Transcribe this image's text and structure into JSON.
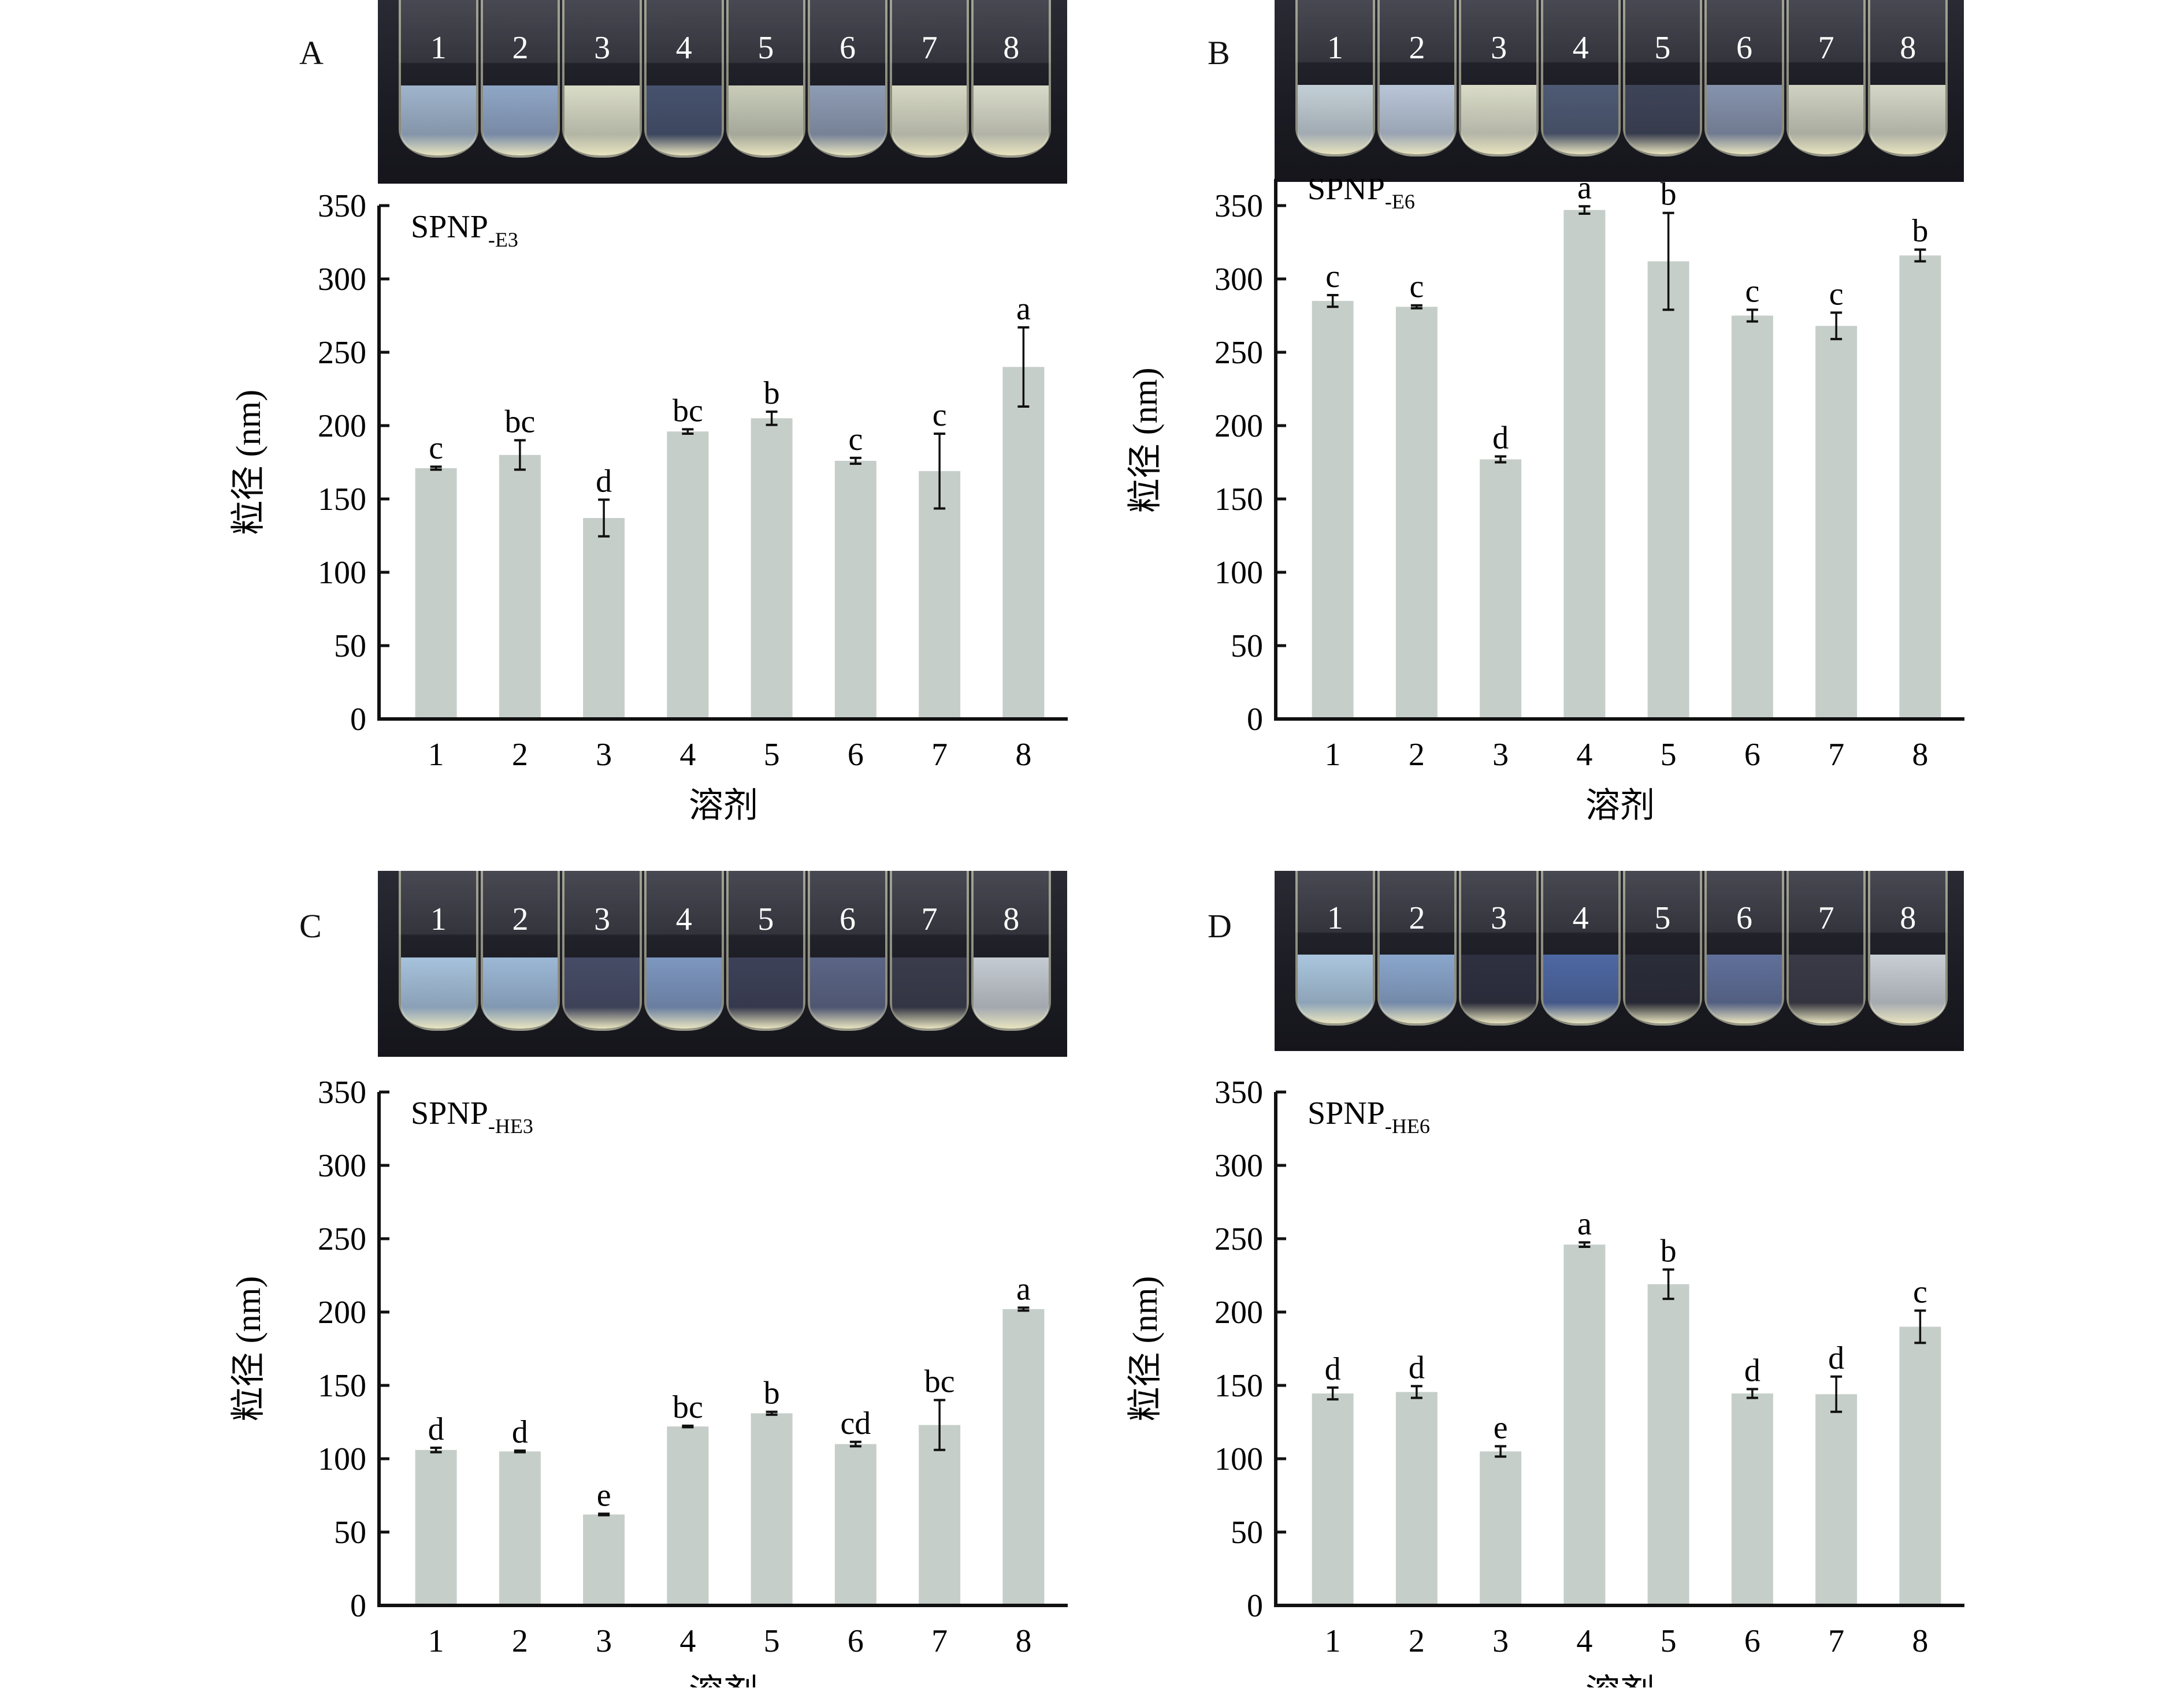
{
  "panels": [
    {
      "letter": "A",
      "vial_labels": [
        "1",
        "2",
        "3",
        "4",
        "5",
        "6",
        "7",
        "8"
      ],
      "liquid_colors": [
        "#9fb4cc",
        "#8fa6c6",
        "#d9dcc6",
        "#46526e",
        "#c8ccb8",
        "#8e9cb4",
        "#d6d8c4",
        "#d8dac8"
      ]
    },
    {
      "letter": "B",
      "vial_labels": [
        "1",
        "2",
        "3",
        "4",
        "5",
        "6",
        "7",
        "8"
      ],
      "liquid_colors": [
        "#c3cfd6",
        "#b9c6d8",
        "#dadcc8",
        "#4e5a74",
        "#3e4458",
        "#8693ad",
        "#cfd1c1",
        "#d4d6c6"
      ]
    },
    {
      "letter": "C",
      "vial_labels": [
        "1",
        "2",
        "3",
        "4",
        "5",
        "6",
        "7",
        "8"
      ],
      "liquid_colors": [
        "#a6c2dc",
        "#9cb8d6",
        "#464c66",
        "#7d97c0",
        "#3d4158",
        "#5b6585",
        "#3a3c4c",
        "#c5cbd2"
      ]
    },
    {
      "letter": "D",
      "vial_labels": [
        "1",
        "2",
        "3",
        "4",
        "5",
        "6",
        "7",
        "8"
      ],
      "liquid_colors": [
        "#aac6de",
        "#8aa6cc",
        "#2e3040",
        "#4e68a4",
        "#2a2c38",
        "#60709a",
        "#3a3a46",
        "#c8ced4"
      ]
    }
  ],
  "chart_data": [
    {
      "type": "bar",
      "panel": "A",
      "title": "SPNP",
      "title_sub": "-E3",
      "xlabel": "溶剂",
      "ylabel": "粒径 (nm)",
      "categories": [
        "1",
        "2",
        "3",
        "4",
        "5",
        "6",
        "7",
        "8"
      ],
      "values": [
        171,
        180,
        137,
        196,
        205,
        176,
        169,
        240
      ],
      "errors": [
        1,
        10,
        12.5,
        1.5,
        4.5,
        2,
        25.5,
        27
      ],
      "letters": [
        "c",
        "bc",
        "d",
        "bc",
        "b",
        "c",
        "c",
        "a"
      ],
      "ylim": [
        0,
        350
      ],
      "yticks": [
        0,
        50,
        100,
        150,
        200,
        250,
        300,
        350
      ],
      "bar_color": "#c6cec9",
      "grid": false
    },
    {
      "type": "bar",
      "panel": "B",
      "title": "SPNP",
      "title_sub": "-E6",
      "xlabel": "溶剂",
      "ylabel": "粒径 (nm)",
      "categories": [
        "1",
        "2",
        "3",
        "4",
        "5",
        "6",
        "7",
        "8"
      ],
      "values": [
        285,
        281,
        177,
        347,
        312,
        275,
        268,
        316
      ],
      "errors": [
        4,
        1,
        2,
        2.5,
        33,
        4,
        9,
        4
      ],
      "letters": [
        "c",
        "c",
        "d",
        "a",
        "b",
        "c",
        "c",
        "b"
      ],
      "ylim": [
        0,
        380
      ],
      "yticks": [
        0,
        50,
        100,
        150,
        200,
        250,
        300,
        350
      ],
      "bar_color": "#c6cec9",
      "grid": false
    },
    {
      "type": "bar",
      "panel": "C",
      "title": "SPNP",
      "title_sub": "-HE3",
      "xlabel": "溶剂",
      "ylabel": "粒径 (nm)",
      "categories": [
        "1",
        "2",
        "3",
        "4",
        "5",
        "6",
        "7",
        "8"
      ],
      "values": [
        106,
        105,
        62,
        122,
        131,
        110,
        123,
        202
      ],
      "errors": [
        1.5,
        0.5,
        0.5,
        0.5,
        1,
        1.5,
        17,
        1
      ],
      "letters": [
        "d",
        "d",
        "e",
        "bc",
        "b",
        "cd",
        "bc",
        "a"
      ],
      "ylim": [
        0,
        350
      ],
      "yticks": [
        0,
        50,
        100,
        150,
        200,
        250,
        300,
        350
      ],
      "bar_color": "#c6cec9",
      "grid": false
    },
    {
      "type": "bar",
      "panel": "D",
      "title": "SPNP",
      "title_sub": "-HE6",
      "xlabel": "溶剂",
      "ylabel": "粒径 (nm)",
      "categories": [
        "1",
        "2",
        "3",
        "4",
        "5",
        "6",
        "7",
        "8"
      ],
      "values": [
        144.5,
        145.5,
        105,
        246,
        219,
        144.5,
        144,
        190
      ],
      "errors": [
        4,
        4,
        3.5,
        1.5,
        10,
        3,
        12,
        11
      ],
      "letters": [
        "d",
        "d",
        "e",
        "a",
        "b",
        "d",
        "d",
        "c"
      ],
      "ylim": [
        0,
        350
      ],
      "yticks": [
        0,
        50,
        100,
        150,
        200,
        250,
        300,
        350
      ],
      "bar_color": "#c6cec9",
      "grid": false
    }
  ]
}
